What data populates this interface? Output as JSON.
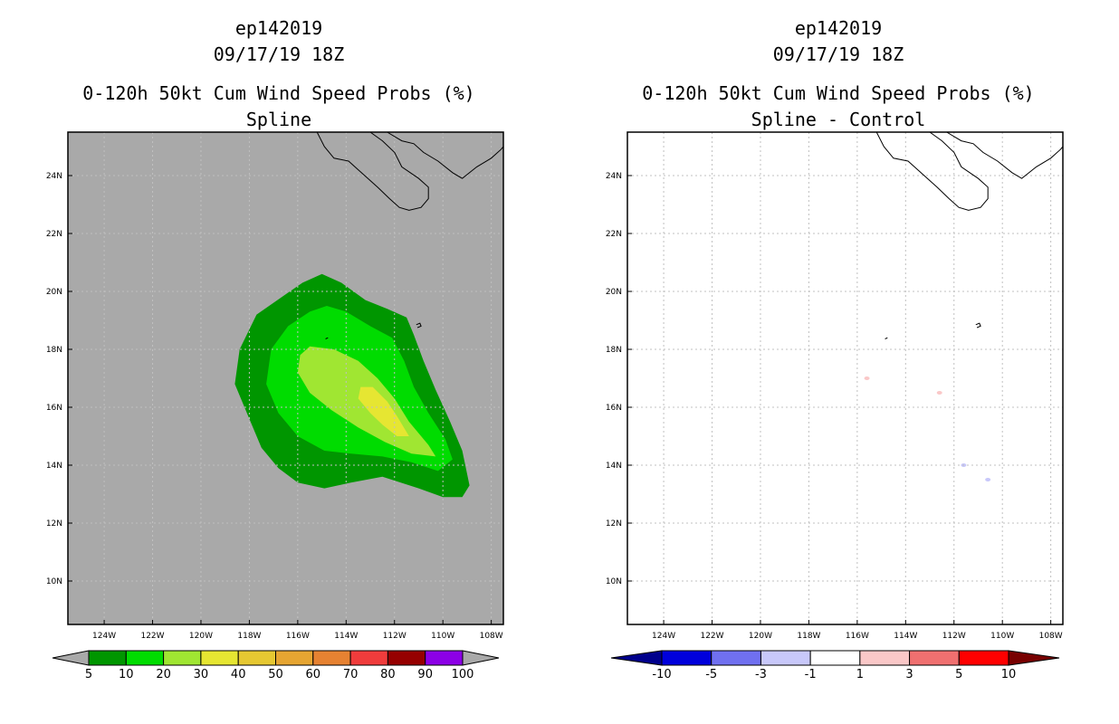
{
  "chart_data": [
    {
      "type": "heatmap",
      "title": [
        "ep142019",
        "09/17/19 18Z",
        "0-120h 50kt Cum Wind Speed Probs (%)",
        "Spline"
      ],
      "x_ticks": [
        "124W",
        "122W",
        "120W",
        "118W",
        "116W",
        "114W",
        "112W",
        "110W",
        "108W"
      ],
      "y_ticks": [
        "24N",
        "22N",
        "20N",
        "18N",
        "16N",
        "14N",
        "12N",
        "10N"
      ],
      "xlim": [
        -125.5,
        -107.5
      ],
      "ylim": [
        8.5,
        25.5
      ],
      "background_color": "#a9a9a9",
      "grid": true,
      "colorbar": {
        "labels": [
          "5",
          "10",
          "20",
          "30",
          "40",
          "50",
          "60",
          "70",
          "80",
          "90",
          "100"
        ],
        "colors": [
          "#009600",
          "#00dc00",
          "#a0e632",
          "#e6e632",
          "#e6c832",
          "#e6a532",
          "#e68232",
          "#f03c3c",
          "#960000",
          "#8c00e6"
        ],
        "under_color": "#a9a9a9",
        "over_color": "#a9a9a9"
      },
      "contours": [
        {
          "level": 5,
          "color": "#009600",
          "points": [
            [
              -115,
              20.6
            ],
            [
              -114.2,
              20.3
            ],
            [
              -113.2,
              19.7
            ],
            [
              -112.3,
              19.4
            ],
            [
              -111.5,
              19.1
            ],
            [
              -111.2,
              18.5
            ],
            [
              -110.8,
              17.6
            ],
            [
              -110.3,
              16.6
            ],
            [
              -109.7,
              15.5
            ],
            [
              -109.2,
              14.5
            ],
            [
              -108.9,
              13.3
            ],
            [
              -109.2,
              12.9
            ],
            [
              -110,
              12.9
            ],
            [
              -111,
              13.2
            ],
            [
              -112.5,
              13.6
            ],
            [
              -113.8,
              13.4
            ],
            [
              -114.9,
              13.2
            ],
            [
              -116,
              13.4
            ],
            [
              -116.8,
              13.9
            ],
            [
              -117.5,
              14.6
            ],
            [
              -118.1,
              15.8
            ],
            [
              -118.6,
              16.8
            ],
            [
              -118.4,
              18.0
            ],
            [
              -117.7,
              19.2
            ],
            [
              -116.5,
              19.9
            ],
            [
              -115.8,
              20.3
            ]
          ]
        },
        {
          "level": 10,
          "color": "#00dc00",
          "points": [
            [
              -114.8,
              19.5
            ],
            [
              -114.0,
              19.3
            ],
            [
              -113.0,
              18.8
            ],
            [
              -112.1,
              18.4
            ],
            [
              -111.6,
              17.6
            ],
            [
              -111.2,
              16.7
            ],
            [
              -110.6,
              15.8
            ],
            [
              -109.9,
              14.9
            ],
            [
              -109.6,
              14.2
            ],
            [
              -110.2,
              13.8
            ],
            [
              -111.3,
              14.1
            ],
            [
              -112.5,
              14.3
            ],
            [
              -113.8,
              14.4
            ],
            [
              -114.9,
              14.5
            ],
            [
              -116.0,
              15.0
            ],
            [
              -116.8,
              15.8
            ],
            [
              -117.3,
              16.8
            ],
            [
              -117.1,
              18.0
            ],
            [
              -116.4,
              18.8
            ],
            [
              -115.5,
              19.3
            ]
          ]
        },
        {
          "level": 20,
          "color": "#a0e632",
          "points": [
            [
              -115.5,
              18.1
            ],
            [
              -114.5,
              18.0
            ],
            [
              -113.5,
              17.6
            ],
            [
              -112.7,
              17.0
            ],
            [
              -112.0,
              16.3
            ],
            [
              -111.4,
              15.5
            ],
            [
              -110.6,
              14.7
            ],
            [
              -110.3,
              14.3
            ],
            [
              -111.3,
              14.4
            ],
            [
              -112.4,
              14.8
            ],
            [
              -113.5,
              15.3
            ],
            [
              -114.6,
              15.9
            ],
            [
              -115.5,
              16.5
            ],
            [
              -116.0,
              17.2
            ],
            [
              -115.9,
              17.8
            ]
          ]
        },
        {
          "level": 30,
          "color": "#e6e632",
          "points": [
            [
              -113.4,
              16.7
            ],
            [
              -112.9,
              16.7
            ],
            [
              -112.3,
              16.2
            ],
            [
              -111.9,
              15.7
            ],
            [
              -111.4,
              15.0
            ],
            [
              -111.9,
              15.0
            ],
            [
              -112.5,
              15.4
            ],
            [
              -113.0,
              15.8
            ],
            [
              -113.5,
              16.3
            ]
          ]
        }
      ],
      "land": [
        {
          "name": "baja-california-peninsula",
          "points": [
            [
              -115.2,
              25.5
            ],
            [
              -114.9,
              25.0
            ],
            [
              -114.5,
              24.6
            ],
            [
              -113.9,
              24.5
            ],
            [
              -113.5,
              24.2
            ],
            [
              -112.7,
              23.6
            ],
            [
              -112.2,
              23.2
            ],
            [
              -111.8,
              22.9
            ],
            [
              -111.4,
              22.8
            ],
            [
              -110.9,
              22.9
            ],
            [
              -110.6,
              23.2
            ],
            [
              -110.6,
              23.6
            ],
            [
              -111.0,
              23.9
            ],
            [
              -111.7,
              24.3
            ],
            [
              -112.0,
              24.8
            ],
            [
              -112.5,
              25.2
            ],
            [
              -113.0,
              25.5
            ]
          ]
        },
        {
          "name": "mainland-coast",
          "points": [
            [
              -112.3,
              25.5
            ],
            [
              -111.7,
              25.2
            ],
            [
              -111.2,
              25.1
            ],
            [
              -110.8,
              24.8
            ],
            [
              -110.2,
              24.5
            ],
            [
              -109.6,
              24.1
            ],
            [
              -109.2,
              23.9
            ],
            [
              -108.6,
              24.3
            ],
            [
              -108.0,
              24.6
            ],
            [
              -107.6,
              24.9
            ],
            [
              -107.5,
              25.0
            ]
          ]
        },
        {
          "name": "socorro-island",
          "points": [
            [
              -111.1,
              18.85
            ],
            [
              -110.95,
              18.9
            ],
            [
              -110.9,
              18.8
            ],
            [
              -111.05,
              18.75
            ]
          ]
        },
        {
          "name": "san-benedicto-island",
          "points": [
            [
              -114.85,
              18.36
            ],
            [
              -114.75,
              18.4
            ]
          ]
        }
      ],
      "difference_marks": []
    },
    {
      "type": "heatmap",
      "title": [
        "ep142019",
        "09/17/19 18Z",
        "0-120h 50kt Cum Wind Speed Probs (%)",
        "Spline - Control"
      ],
      "x_ticks": [
        "124W",
        "122W",
        "120W",
        "118W",
        "116W",
        "114W",
        "112W",
        "110W",
        "108W"
      ],
      "y_ticks": [
        "24N",
        "22N",
        "20N",
        "18N",
        "16N",
        "14N",
        "12N",
        "10N"
      ],
      "xlim": [
        -125.5,
        -107.5
      ],
      "ylim": [
        8.5,
        25.5
      ],
      "background_color": "#ffffff",
      "grid": true,
      "colorbar": {
        "labels": [
          "-10",
          "-5",
          "-3",
          "-1",
          "1",
          "3",
          "5",
          "10"
        ],
        "colors": [
          "#0000dc",
          "#7070f0",
          "#c8c8fa",
          "#ffffff",
          "#fac8c8",
          "#f07070",
          "#ff0000"
        ],
        "under_color": "#00008c",
        "over_color": "#780000"
      },
      "contours": [],
      "land": [
        {
          "name": "baja-california-peninsula",
          "points": [
            [
              -115.2,
              25.5
            ],
            [
              -114.9,
              25.0
            ],
            [
              -114.5,
              24.6
            ],
            [
              -113.9,
              24.5
            ],
            [
              -113.5,
              24.2
            ],
            [
              -112.7,
              23.6
            ],
            [
              -112.2,
              23.2
            ],
            [
              -111.8,
              22.9
            ],
            [
              -111.4,
              22.8
            ],
            [
              -110.9,
              22.9
            ],
            [
              -110.6,
              23.2
            ],
            [
              -110.6,
              23.6
            ],
            [
              -111.0,
              23.9
            ],
            [
              -111.7,
              24.3
            ],
            [
              -112.0,
              24.8
            ],
            [
              -112.5,
              25.2
            ],
            [
              -113.0,
              25.5
            ]
          ]
        },
        {
          "name": "mainland-coast",
          "points": [
            [
              -112.3,
              25.5
            ],
            [
              -111.7,
              25.2
            ],
            [
              -111.2,
              25.1
            ],
            [
              -110.8,
              24.8
            ],
            [
              -110.2,
              24.5
            ],
            [
              -109.6,
              24.1
            ],
            [
              -109.2,
              23.9
            ],
            [
              -108.6,
              24.3
            ],
            [
              -108.0,
              24.6
            ],
            [
              -107.6,
              24.9
            ],
            [
              -107.5,
              25.0
            ]
          ]
        },
        {
          "name": "socorro-island",
          "points": [
            [
              -111.1,
              18.85
            ],
            [
              -110.95,
              18.9
            ],
            [
              -110.9,
              18.8
            ],
            [
              -111.05,
              18.75
            ]
          ]
        },
        {
          "name": "san-benedicto-island",
          "points": [
            [
              -114.85,
              18.36
            ],
            [
              -114.75,
              18.4
            ]
          ]
        }
      ],
      "difference_marks": [
        {
          "lon": -115.6,
          "lat": 17.0,
          "color": "#fac8c8"
        },
        {
          "lon": -112.6,
          "lat": 16.5,
          "color": "#fac8c8"
        },
        {
          "lon": -111.6,
          "lat": 14.0,
          "color": "#c8c8fa"
        },
        {
          "lon": -110.6,
          "lat": 13.5,
          "color": "#c8c8fa"
        }
      ]
    }
  ]
}
